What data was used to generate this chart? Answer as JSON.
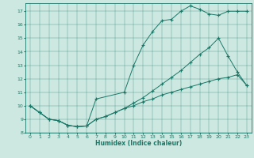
{
  "xlabel": "Humidex (Indice chaleur)",
  "background_color": "#cce8e0",
  "line_color": "#1a7868",
  "xlim": [
    -0.5,
    23.5
  ],
  "ylim": [
    8.0,
    17.6
  ],
  "yticks": [
    8,
    9,
    10,
    11,
    12,
    13,
    14,
    15,
    16,
    17
  ],
  "xticks": [
    0,
    1,
    2,
    3,
    4,
    5,
    6,
    7,
    8,
    9,
    10,
    11,
    12,
    13,
    14,
    15,
    16,
    17,
    18,
    19,
    20,
    21,
    22,
    23
  ],
  "line1_x": [
    0,
    1,
    2,
    3,
    4,
    5,
    6,
    7,
    10,
    11,
    12,
    13,
    14,
    15,
    16,
    17,
    18,
    19,
    20,
    21,
    22,
    23
  ],
  "line1_y": [
    10.0,
    9.5,
    9.0,
    8.9,
    8.55,
    8.45,
    8.5,
    10.5,
    11.0,
    13.0,
    14.5,
    15.5,
    16.3,
    16.4,
    17.0,
    17.4,
    17.15,
    16.8,
    16.7,
    17.0,
    17.0,
    17.0
  ],
  "line2_x": [
    0,
    1,
    2,
    3,
    4,
    5,
    6,
    7,
    8,
    9,
    10,
    11,
    12,
    13,
    14,
    15,
    16,
    17,
    18,
    19,
    20,
    21,
    22,
    23
  ],
  "line2_y": [
    10.0,
    9.5,
    9.0,
    8.9,
    8.55,
    8.45,
    8.5,
    9.0,
    9.2,
    9.5,
    9.8,
    10.2,
    10.6,
    11.1,
    11.6,
    12.1,
    12.6,
    13.2,
    13.8,
    14.3,
    15.0,
    13.7,
    12.5,
    11.5
  ],
  "line3_x": [
    0,
    1,
    2,
    3,
    4,
    5,
    6,
    7,
    8,
    9,
    10,
    11,
    12,
    13,
    14,
    15,
    16,
    17,
    18,
    19,
    20,
    21,
    22,
    23
  ],
  "line3_y": [
    10.0,
    9.5,
    9.0,
    8.9,
    8.55,
    8.45,
    8.5,
    9.0,
    9.2,
    9.5,
    9.8,
    10.0,
    10.3,
    10.5,
    10.8,
    11.0,
    11.2,
    11.4,
    11.6,
    11.8,
    12.0,
    12.1,
    12.3,
    11.5
  ]
}
